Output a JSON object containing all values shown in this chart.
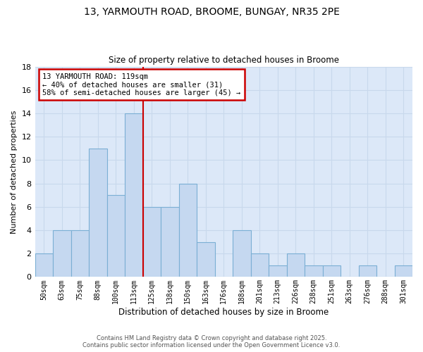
{
  "title": "13, YARMOUTH ROAD, BROOME, BUNGAY, NR35 2PE",
  "subtitle": "Size of property relative to detached houses in Broome",
  "xlabel": "Distribution of detached houses by size in Broome",
  "ylabel": "Number of detached properties",
  "bar_labels": [
    "50sqm",
    "63sqm",
    "75sqm",
    "88sqm",
    "100sqm",
    "113sqm",
    "125sqm",
    "138sqm",
    "150sqm",
    "163sqm",
    "176sqm",
    "188sqm",
    "201sqm",
    "213sqm",
    "226sqm",
    "238sqm",
    "251sqm",
    "263sqm",
    "276sqm",
    "288sqm",
    "301sqm"
  ],
  "bar_values": [
    2,
    4,
    4,
    11,
    7,
    14,
    6,
    6,
    8,
    3,
    0,
    4,
    2,
    1,
    2,
    1,
    1,
    0,
    1,
    0,
    1
  ],
  "bar_color": "#c5d8f0",
  "bar_edge_color": "#7bafd4",
  "highlight_line_color": "#cc0000",
  "vline_bar_index": 5,
  "annotation_text": "13 YARMOUTH ROAD: 119sqm\n← 40% of detached houses are smaller (31)\n58% of semi-detached houses are larger (45) →",
  "annotation_box_color": "#ffffff",
  "annotation_box_edge": "#cc0000",
  "ylim": [
    0,
    18
  ],
  "yticks": [
    0,
    2,
    4,
    6,
    8,
    10,
    12,
    14,
    16,
    18
  ],
  "grid_color": "#c8d8ec",
  "bg_color": "#dce8f8",
  "fig_bg_color": "#ffffff",
  "footer1": "Contains HM Land Registry data © Crown copyright and database right 2025.",
  "footer2": "Contains public sector information licensed under the Open Government Licence v3.0."
}
